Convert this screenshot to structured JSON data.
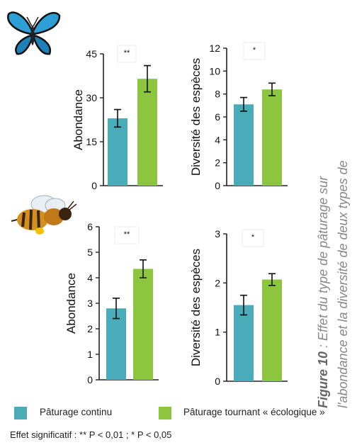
{
  "caption": {
    "figure_label": "Figure 10",
    "line1": " : Effet du type de pâturage sur",
    "line2": "l'abondance et la diversité de deux types de"
  },
  "legend": {
    "items": [
      {
        "label": "Pâturage continu",
        "color": "#4AABB9"
      },
      {
        "label": "Pâturage tournant « écologique »",
        "color": "#8CC63F"
      }
    ]
  },
  "footnote": "Effet significatif : ** P < 0,01 ; * P < 0,05",
  "icons": [
    "butterfly-icon",
    "bee-icon"
  ],
  "chart_data": [
    {
      "type": "bar",
      "categories": [
        "Pâturage continu",
        "Pâturage tournant « écologique »"
      ],
      "values": [
        23,
        36.5
      ],
      "errors": [
        3,
        4.5
      ],
      "ylabel": "Abondance",
      "ylim": [
        0,
        45
      ],
      "yticks": [
        0,
        15,
        30,
        45
      ],
      "significance": "**",
      "icon": "butterfly-icon"
    },
    {
      "type": "bar",
      "categories": [
        "Pâturage continu",
        "Pâturage tournant « écologique »"
      ],
      "values": [
        7.1,
        8.4
      ],
      "errors": [
        0.6,
        0.55
      ],
      "ylabel": "Diversité des espèces",
      "ylim": [
        0,
        12
      ],
      "yticks": [
        0,
        2,
        4,
        6,
        8,
        10,
        12
      ],
      "significance": "*",
      "icon": "butterfly-icon"
    },
    {
      "type": "bar",
      "categories": [
        "Pâturage continu",
        "Pâturage tournant « écologique »"
      ],
      "values": [
        2.8,
        4.35
      ],
      "errors": [
        0.4,
        0.35
      ],
      "ylabel": "Abondance",
      "ylim": [
        0,
        6
      ],
      "yticks": [
        0,
        1,
        2,
        3,
        4,
        5,
        6
      ],
      "significance": "**",
      "icon": "bee-icon"
    },
    {
      "type": "bar",
      "categories": [
        "Pâturage continu",
        "Pâturage tournant « écologique »"
      ],
      "values": [
        1.55,
        2.07
      ],
      "errors": [
        0.2,
        0.12
      ],
      "ylabel": "Diversité des espèces",
      "ylim": [
        0,
        3
      ],
      "yticks": [
        0,
        1,
        2,
        3
      ],
      "significance": "*",
      "icon": "bee-icon"
    }
  ]
}
